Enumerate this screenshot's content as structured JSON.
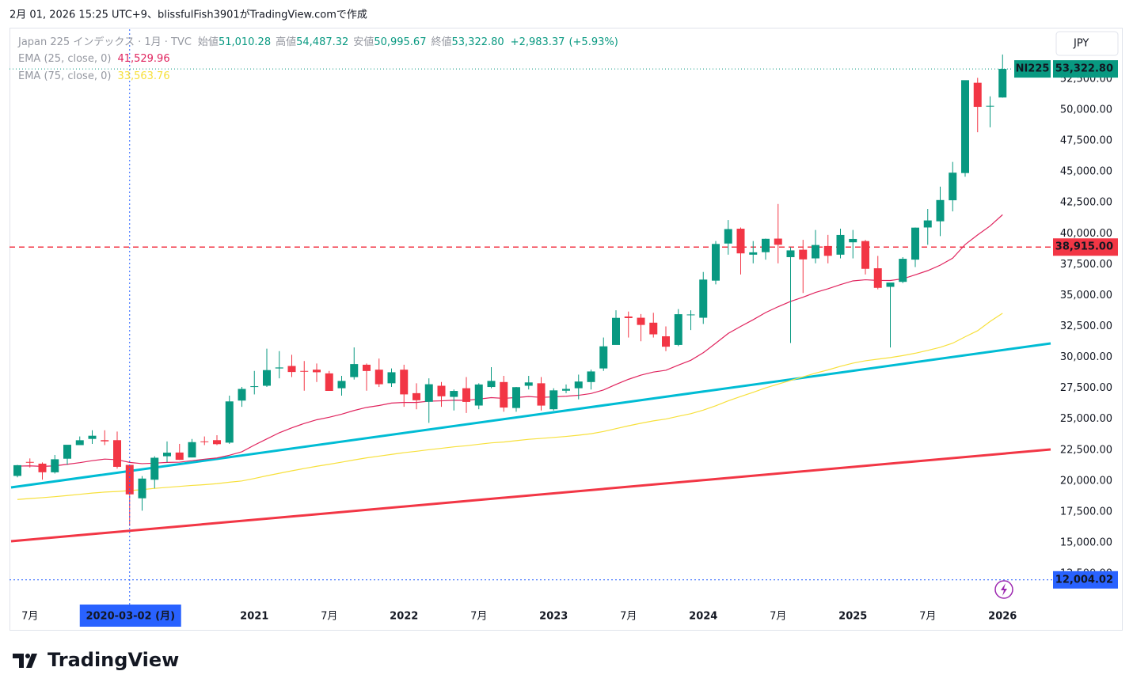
{
  "header": "2月 01, 2026 15:25 UTC+9、blissfulFish3901がTradingView.comで作成",
  "currency": "JPY",
  "footer": "TradingView",
  "chart_data": {
    "type": "candlestick",
    "symbol_title": "Japan 225 インデックス · 1月 · TVC",
    "legend_labels": [
      "始値",
      "高値",
      "安値",
      "終値"
    ],
    "legend_values": [
      {
        "value": 51010.28,
        "label": "51,010.28"
      },
      {
        "value": 54487.32,
        "label": "54,487.32"
      },
      {
        "value": 50995.67,
        "label": "50,995.67"
      },
      {
        "value": 53322.8,
        "label": "53,322.80"
      }
    ],
    "change": {
      "value": 2983.37,
      "label": "+2,983.37"
    },
    "change_pct": {
      "value": 5.93,
      "label": "(+5.93%)"
    },
    "categories": [
      null,
      "7月",
      null,
      null,
      null,
      null,
      null,
      null,
      null,
      null,
      null,
      null,
      null,
      null,
      null,
      null,
      null,
      null,
      null,
      "2021",
      null,
      null,
      null,
      null,
      null,
      "7月",
      null,
      null,
      null,
      null,
      null,
      "2022",
      null,
      null,
      null,
      null,
      null,
      "7月",
      null,
      null,
      null,
      null,
      null,
      "2023",
      null,
      null,
      null,
      null,
      null,
      "7月",
      null,
      null,
      null,
      null,
      null,
      "2024",
      null,
      null,
      null,
      null,
      null,
      "7月",
      null,
      null,
      null,
      null,
      null,
      "2025",
      null,
      null,
      null,
      null,
      null,
      "7月",
      null,
      null,
      null,
      null,
      null,
      "2026"
    ],
    "open": [
      20410,
      21540,
      21400,
      20700,
      21800,
      22900,
      23400,
      23300,
      23300,
      21300,
      18600,
      20100,
      22000,
      22300,
      21900,
      23200,
      23300,
      23100,
      26500,
      27600,
      27700,
      29100,
      29300,
      28900,
      29000,
      28700,
      27500,
      28400,
      29400,
      29000,
      27900,
      29000,
      27100,
      26400,
      27700,
      26800,
      27500,
      26100,
      27600,
      28000,
      25900,
      27700,
      27900,
      25800,
      27300,
      27500,
      28000,
      29100,
      31000,
      33300,
      33200,
      32800,
      31700,
      31000,
      33400,
      33200,
      36200,
      39200,
      40400,
      38300,
      38500,
      39600,
      38100,
      38700,
      38000,
      39000,
      38300,
      39300,
      39400,
      37200,
      35700,
      36100,
      37900,
      40500,
      41000,
      42700,
      44900,
      52200,
      50300,
      51010.28
    ],
    "high": [
      21300,
      21823,
      21500,
      22100,
      22900,
      23600,
      24100,
      24100,
      24000,
      21300,
      20400,
      22000,
      23200,
      23000,
      23400,
      23600,
      23700,
      26900,
      27600,
      28900,
      30700,
      30500,
      30200,
      29700,
      29500,
      28900,
      28500,
      30800,
      29500,
      29900,
      29100,
      29400,
      27900,
      28300,
      28000,
      27400,
      28400,
      27900,
      29200,
      28500,
      27600,
      28500,
      28400,
      27500,
      27800,
      28600,
      29000,
      31600,
      33800,
      33700,
      33500,
      33600,
      32500,
      33900,
      33800,
      36900,
      39400,
      41100,
      40500,
      39400,
      39600,
      42400,
      38900,
      39500,
      40300,
      39900,
      40400,
      40300,
      39500,
      38200,
      36000,
      38100,
      40500,
      42000,
      43800,
      45800,
      52400,
      52600,
      51100,
      54487.32
    ],
    "low": [
      20290,
      21087,
      20110,
      20600,
      21300,
      22900,
      23000,
      22900,
      21000,
      16358,
      17600,
      19400,
      21500,
      21700,
      21900,
      22900,
      22900,
      23000,
      26000,
      27000,
      27600,
      28300,
      28400,
      27300,
      28000,
      27300,
      26900,
      28200,
      27300,
      27600,
      27600,
      26000,
      25800,
      24700,
      26000,
      25700,
      25500,
      25800,
      27500,
      25600,
      25600,
      27400,
      25700,
      25700,
      27100,
      26600,
      27400,
      28900,
      31100,
      31600,
      31300,
      31600,
      30500,
      30900,
      32200,
      32700,
      35900,
      38300,
      36700,
      37600,
      37900,
      37600,
      31156,
      35200,
      37600,
      37600,
      38000,
      38000,
      36700,
      35500,
      30792,
      36000,
      37300,
      39100,
      39800,
      41800,
      44600,
      48200,
      48600,
      50995.67
    ],
    "close": [
      21276,
      21522,
      20704,
      21756,
      22927,
      23294,
      23657,
      23205,
      21143,
      18917,
      20194,
      21878,
      22288,
      21710,
      23140,
      23185,
      22977,
      26434,
      27444,
      27663,
      28966,
      29179,
      28812,
      28860,
      28792,
      27284,
      28090,
      29453,
      28893,
      27822,
      28792,
      27002,
      26527,
      27821,
      26848,
      27280,
      26393,
      27802,
      28092,
      25937,
      27587,
      27969,
      26095,
      27327,
      27446,
      28041,
      28856,
      30888,
      33189,
      33172,
      32619,
      31857,
      30858,
      33486,
      33464,
      36286,
      39166,
      40369,
      38405,
      38488,
      39583,
      39101,
      38647,
      37919,
      39081,
      38208,
      39894,
      39572,
      37155,
      35617,
      36045,
      37965,
      40487,
      41069,
      42718,
      44932,
      52411,
      50254,
      50339,
      53322.8
    ],
    "up_color": "#089981",
    "down_color": "#f23645",
    "lines": [
      {
        "name": "EMA (25, close, 0)",
        "color": "#e0245e",
        "last_label": {
          "value": 41529.96,
          "label": "41,529.96"
        },
        "values": [
          21200,
          21220,
          21180,
          21220,
          21350,
          21480,
          21640,
          21770,
          21720,
          21500,
          21400,
          21440,
          21500,
          21520,
          21640,
          21760,
          21860,
          22080,
          22360,
          22900,
          23400,
          23900,
          24300,
          24650,
          24950,
          25150,
          25400,
          25700,
          25950,
          26100,
          26300,
          26350,
          26350,
          26450,
          26480,
          26530,
          26520,
          26620,
          26740,
          26680,
          26750,
          26830,
          26760,
          26800,
          26850,
          26930,
          27070,
          27360,
          27810,
          28220,
          28560,
          28810,
          28950,
          29370,
          29760,
          30370,
          31140,
          31930,
          32500,
          33040,
          33620,
          34090,
          34520,
          34860,
          35250,
          35540,
          35880,
          36180,
          36270,
          36220,
          36210,
          36350,
          36670,
          37010,
          37450,
          38020,
          39120,
          39900,
          40620,
          41530
        ]
      },
      {
        "name": "EMA (75, close, 0)",
        "color": "#f7e03c",
        "last_label": {
          "value": 33563.76,
          "label": "33,563.76"
        },
        "values": [
          18500,
          18580,
          18650,
          18730,
          18820,
          18920,
          19020,
          19100,
          19150,
          19220,
          19300,
          19400,
          19480,
          19560,
          19640,
          19700,
          19780,
          19900,
          20000,
          20200,
          20420,
          20620,
          20820,
          21010,
          21190,
          21350,
          21520,
          21700,
          21870,
          22010,
          22150,
          22290,
          22400,
          22530,
          22640,
          22760,
          22850,
          22970,
          23080,
          23150,
          23260,
          23370,
          23440,
          23520,
          23600,
          23700,
          23820,
          24000,
          24230,
          24460,
          24670,
          24860,
          25010,
          25230,
          25440,
          25730,
          26080,
          26480,
          26830,
          27170,
          27530,
          27830,
          28130,
          28420,
          28720,
          28980,
          29270,
          29530,
          29720,
          29850,
          29980,
          30140,
          30330,
          30560,
          30810,
          31140,
          31660,
          32150,
          32900,
          33560
        ]
      }
    ],
    "ylim": [
      9943,
      56527
    ],
    "yticks": [
      {
        "value": 12500,
        "label": "12,500.00"
      },
      {
        "value": 15000,
        "label": "15,000.00"
      },
      {
        "value": 17500,
        "label": "17,500.00"
      },
      {
        "value": 20000,
        "label": "20,000.00"
      },
      {
        "value": 22500,
        "label": "22,500.00"
      },
      {
        "value": 25000,
        "label": "25,000.00"
      },
      {
        "value": 27500,
        "label": "27,500.00"
      },
      {
        "value": 30000,
        "label": "30,000.00"
      },
      {
        "value": 32500,
        "label": "32,500.00"
      },
      {
        "value": 35000,
        "label": "35,000.00"
      },
      {
        "value": 37500,
        "label": "37,500.00"
      },
      {
        "value": 40000,
        "label": "40,000.00"
      },
      {
        "value": 42500,
        "label": "42,500.00"
      },
      {
        "value": 45000,
        "label": "45,000.00"
      },
      {
        "value": 47500,
        "label": "47,500.00"
      },
      {
        "value": 50000,
        "label": "50,000.00"
      },
      {
        "value": 52500,
        "label": "52,500.00"
      }
    ],
    "grid": false,
    "last_price": {
      "symbol": "NI225",
      "value": 53322.8,
      "label": "53,322.80"
    },
    "horizontal_line": {
      "value": 38915,
      "label": "38,915.00",
      "color": "#f23645"
    },
    "crosshair": {
      "x_label": "2020-03-02 (月)",
      "y_value": 12004.02,
      "y_label": "12,004.02",
      "color": "#2962ff"
    }
  }
}
